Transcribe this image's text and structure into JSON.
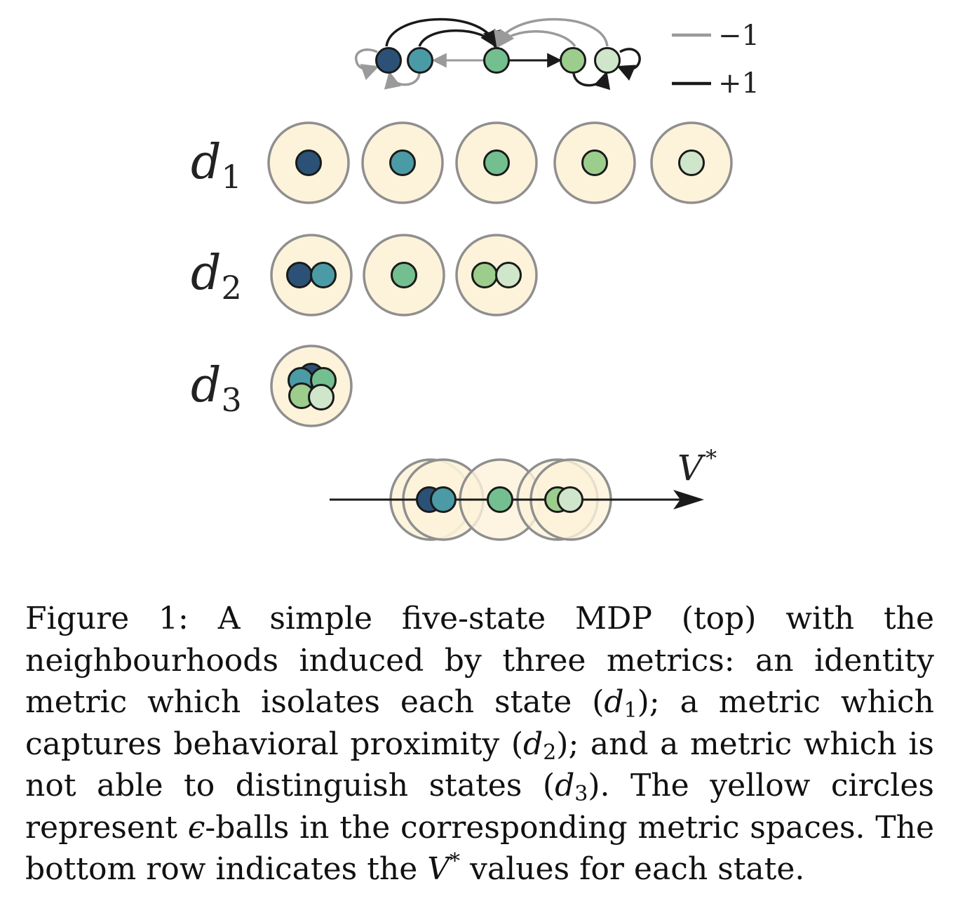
{
  "colors": {
    "state1": "#2b5276",
    "state2": "#4a9ba6",
    "state3": "#74bf8f",
    "state4": "#9ccd8c",
    "state5": "#d0e6ca",
    "ball_fill": "#fdf3da",
    "ball_stroke": "#8f8f8f",
    "reward_neg": "#9a9a9a",
    "reward_pos": "#1a1a1a"
  },
  "mdp": {
    "states": [
      "s1",
      "s2",
      "s3",
      "s4",
      "s5"
    ],
    "legend": [
      {
        "label": "−1",
        "color": "#9a9a9a"
      },
      {
        "label": "+1",
        "color": "#1a1a1a"
      }
    ]
  },
  "metrics": [
    {
      "name": "d",
      "sub": "1",
      "groups": [
        [
          1
        ],
        [
          2
        ],
        [
          3
        ],
        [
          4
        ],
        [
          5
        ]
      ]
    },
    {
      "name": "d",
      "sub": "2",
      "groups": [
        [
          1,
          2
        ],
        [
          3
        ],
        [
          4,
          5
        ]
      ]
    },
    {
      "name": "d",
      "sub": "3",
      "groups": [
        [
          1,
          2,
          3,
          4,
          5
        ]
      ]
    }
  ],
  "value_axis": {
    "label": "V",
    "label_sup": "*",
    "groups": [
      [
        1,
        2
      ],
      [
        3
      ],
      [
        4,
        5
      ]
    ]
  },
  "caption": {
    "p1": "Figure 1:  A simple five-state MDP (top) with the neighbourhoods induced by three metrics: an identity metric which isolates each state (",
    "m1": "d",
    "m1_sub": "1",
    "p2": "); a metric which captures behavioral proximity (",
    "m2": "d",
    "m2_sub": "2",
    "p3": "); and a metric which is not able to distinguish states (",
    "m3": "d",
    "m3_sub": "3",
    "p4": ").  The yellow circles represent ",
    "eps": "ϵ",
    "p5": "-balls in the corresponding metric spaces.  The bottom row indicates the ",
    "v": "V",
    "v_sup": "*",
    "p6": " values for each state."
  }
}
